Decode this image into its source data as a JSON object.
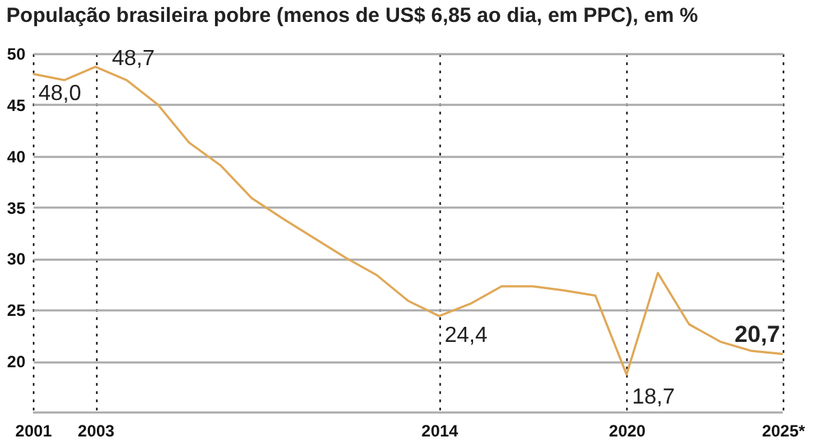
{
  "chart_data": {
    "type": "line",
    "title": "População brasileira pobre (menos de US$ 6,85 ao dia, em PPC), em %",
    "x": [
      2001,
      2002,
      2003,
      2004,
      2005,
      2006,
      2007,
      2008,
      2009,
      2011,
      2012,
      2013,
      2014,
      2015,
      2016,
      2017,
      2018,
      2019,
      2020,
      2021,
      2022,
      2023,
      2024,
      2025
    ],
    "series": [
      {
        "color": "#e0a857",
        "values": [
          48.0,
          47.4,
          48.7,
          47.4,
          45.0,
          41.3,
          39.1,
          35.9,
          33.9,
          30.1,
          28.4,
          25.9,
          24.4,
          25.6,
          27.3,
          27.3,
          26.9,
          26.4,
          18.7,
          28.6,
          23.6,
          21.9,
          21.0,
          20.7
        ]
      }
    ],
    "xlim": [
      2001,
      2025
    ],
    "xticks": [
      2001,
      2003,
      2014,
      2020,
      {
        "value": 2025,
        "label": "2025*"
      }
    ],
    "ylim": [
      15,
      50
    ],
    "yticks": [
      20,
      25,
      30,
      35,
      40,
      45,
      50
    ],
    "grid": true,
    "marker": "none",
    "line_style": "solid",
    "annotations": [
      {
        "text": "48,0",
        "x": 2001,
        "y": 48.0
      },
      {
        "text": "48,7",
        "x": 2003,
        "y": 48.7
      },
      {
        "text": "24,4",
        "x": 2014,
        "y": 24.4
      },
      {
        "text": "18,7",
        "x": 2020,
        "y": 18.7
      },
      {
        "text": "20,7",
        "x": 2025,
        "y": 20.7
      }
    ]
  }
}
